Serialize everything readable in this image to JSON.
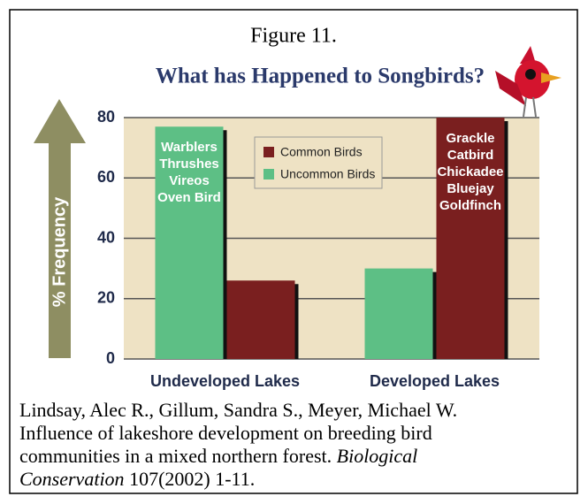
{
  "figure_label": "Figure 11.",
  "source": {
    "lines": [
      [
        {
          "text": "Lindsay, Alec R., Gillum, Sandra S., Meyer, Michael W.",
          "italic": false
        }
      ],
      [
        {
          "text": "Influence of lakeshore development on breeding bird",
          "italic": false
        }
      ],
      [
        {
          "text": "communities in a mixed northern forest. ",
          "italic": false
        },
        {
          "text": "Biological",
          "italic": true
        }
      ],
      [
        {
          "text": "Conservation",
          "italic": true
        },
        {
          "text": " 107(2002) 1-11.",
          "italic": false
        }
      ]
    ]
  },
  "chart_data": {
    "type": "bar",
    "title": "What has Happened to Songbirds?",
    "y_label": "% Frequency",
    "categories": [
      "Undeveloped Lakes",
      "Developed Lakes"
    ],
    "series": [
      {
        "name": "Common Birds",
        "color": "#7a1f1f",
        "values": [
          26,
          80
        ]
      },
      {
        "name": "Uncommon Birds",
        "color": "#5dbf85",
        "values": [
          77,
          30
        ]
      }
    ],
    "annotations": [
      {
        "lines": [
          "Warblers",
          "Thrushes",
          "Vireos",
          "Oven Bird"
        ]
      },
      {
        "lines": [
          "Grackle",
          "Catbird",
          "Chickadee",
          "Bluejay",
          "Goldfinch"
        ]
      }
    ],
    "ylim": [
      0,
      80
    ],
    "yticks": [
      0,
      20,
      40,
      60,
      80
    ],
    "grid": true
  }
}
